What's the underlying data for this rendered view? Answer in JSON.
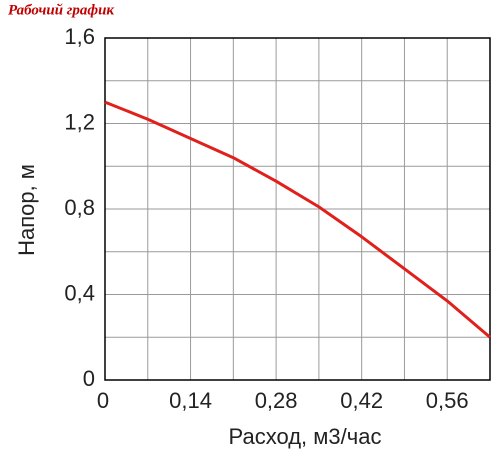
{
  "chart_data": {
    "type": "line",
    "title": "Рабочий график",
    "xlabel": "Расход, м3/час",
    "ylabel": "Напор, м",
    "x": [
      0,
      0.07,
      0.14,
      0.21,
      0.28,
      0.35,
      0.42,
      0.49,
      0.56,
      0.63
    ],
    "series": [
      {
        "name": "Напор",
        "color": "#e0201c",
        "values": [
          1.3,
          1.22,
          1.13,
          1.04,
          0.93,
          0.81,
          0.67,
          0.52,
          0.37,
          0.2
        ]
      }
    ],
    "xlim": [
      0,
      0.63
    ],
    "ylim": [
      0,
      1.6
    ],
    "xticks": [
      0,
      {
        "value": 0.14,
        "label": "0,14"
      },
      {
        "value": 0.28,
        "label": "0,28"
      },
      {
        "value": 0.42,
        "label": "0,42"
      },
      {
        "value": 0.56,
        "label": "0,56"
      }
    ],
    "yticks": [
      0,
      {
        "value": 0.4,
        "label": "0,4"
      },
      {
        "value": 0.8,
        "label": "0,8"
      },
      {
        "value": 1.2,
        "label": "1,2"
      },
      {
        "value": 1.6,
        "label": "1,6"
      }
    ],
    "grid": true
  }
}
